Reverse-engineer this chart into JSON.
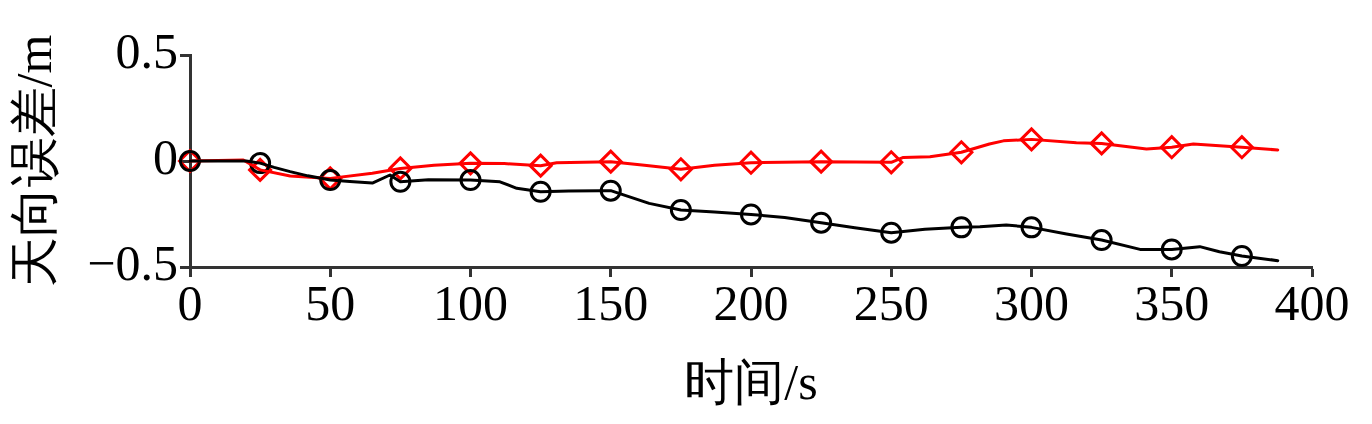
{
  "chart_data": {
    "type": "line",
    "xlabel": "时间/s",
    "ylabel": "天向误差/m",
    "xlim": [
      0,
      400
    ],
    "xticks": [
      0,
      50,
      100,
      150,
      200,
      250,
      300,
      350,
      400
    ],
    "ylim": [
      -0.5,
      0.5
    ],
    "yticks": [
      {
        "value": -0.5,
        "label": "−0.5"
      },
      0,
      0.5
    ],
    "series": [
      {
        "type": "line",
        "color": "#000000",
        "marker": "none",
        "x": [
          0,
          10,
          20,
          25,
          30,
          35.7,
          42,
          50,
          57,
          65,
          71.3,
          75,
          85,
          100,
          110.5,
          116.5,
          125,
          135,
          146,
          150,
          163.7,
          175,
          187,
          200,
          212,
          225,
          237,
          250,
          262,
          275,
          281.6,
          291,
          300,
          312.5,
          325,
          338.7,
          350,
          360,
          367,
          375,
          387.8
        ],
        "values": [
          0,
          0,
          0,
          -0.01,
          -0.03,
          -0.05,
          -0.07,
          -0.09,
          -0.097,
          -0.104,
          -0.066,
          -0.098,
          -0.088,
          -0.09,
          -0.098,
          -0.129,
          -0.145,
          -0.142,
          -0.14,
          -0.14,
          -0.2,
          -0.231,
          -0.24,
          -0.252,
          -0.266,
          -0.291,
          -0.315,
          -0.338,
          -0.322,
          -0.313,
          -0.31,
          -0.302,
          -0.313,
          -0.344,
          -0.373,
          -0.417,
          -0.417,
          -0.404,
          -0.428,
          -0.448,
          -0.47
        ]
      },
      {
        "type": "line",
        "color": "#ff0000",
        "marker": "none",
        "x": [
          0,
          10,
          19,
          25,
          35.7,
          50,
          65,
          75,
          87,
          100,
          112,
          125,
          130.7,
          150,
          162,
          175,
          187,
          200,
          225,
          250,
          254.3,
          263.8,
          275,
          285,
          290,
          300,
          316,
          325,
          341,
          350,
          357.7,
          375,
          387.8
        ],
        "values": [
          0,
          0.002,
          0.005,
          -0.042,
          -0.071,
          -0.082,
          -0.058,
          -0.035,
          -0.02,
          -0.011,
          -0.012,
          -0.022,
          -0.008,
          -0.003,
          -0.02,
          -0.039,
          -0.02,
          -0.008,
          -0.003,
          -0.006,
          0.017,
          0.02,
          0.041,
          0.08,
          0.095,
          0.102,
          0.086,
          0.083,
          0.057,
          0.065,
          0.08,
          0.065,
          0.052
        ]
      },
      {
        "type": "scatter",
        "color": "#000000",
        "marker": "circle",
        "x": [
          0,
          25,
          50,
          75,
          100,
          125,
          150,
          175,
          200,
          225,
          250,
          275,
          300,
          325,
          350,
          375
        ],
        "values": [
          0,
          -0.01,
          -0.09,
          -0.098,
          -0.09,
          -0.145,
          -0.14,
          -0.231,
          -0.252,
          -0.291,
          -0.338,
          -0.313,
          -0.313,
          -0.373,
          -0.417,
          -0.448
        ]
      },
      {
        "type": "scatter",
        "color": "#ff0000",
        "marker": "diamond",
        "x": [
          0,
          25,
          50,
          75,
          100,
          125,
          150,
          175,
          200,
          225,
          250,
          275,
          300,
          325,
          350,
          375
        ],
        "values": [
          0,
          -0.042,
          -0.082,
          -0.035,
          -0.011,
          -0.022,
          -0.003,
          -0.039,
          -0.008,
          -0.003,
          -0.006,
          0.041,
          0.102,
          0.083,
          0.065,
          0.065
        ]
      }
    ]
  }
}
